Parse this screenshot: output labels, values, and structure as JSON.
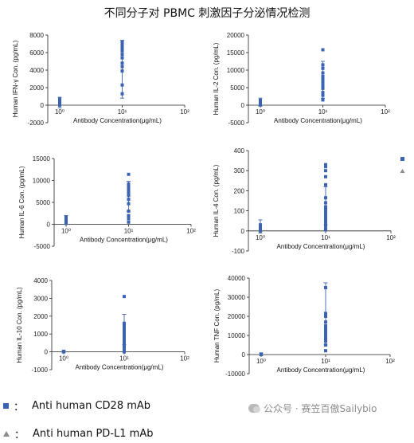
{
  "title": "不同分子对 PBMC 刺激因子分泌情况检测",
  "legend": {
    "items": [
      {
        "label": "Anti human CD28 mAb",
        "marker": "square",
        "color": "#3b62b3"
      },
      {
        "label": "Anti human PD-L1 mAb",
        "marker": "triangle",
        "color": "#8a8a8a"
      }
    ],
    "separator": "："
  },
  "watermark": "公众号 · 赛笠百傲Sailybio",
  "chart_data": [
    {
      "type": "scatter",
      "ylabel": "Human IFN-γ Con. (pg/mL)",
      "xlabel": "Antibody Concentration(μg/mL)",
      "ylim": [
        -2000,
        8000
      ],
      "yticks": [
        -2000,
        0,
        2000,
        4000,
        6000,
        8000
      ],
      "xticks": [
        "10⁰",
        "10¹",
        "10²"
      ],
      "xlog": [
        0,
        2
      ],
      "series": [
        {
          "x": 1,
          "values": [
            0,
            300,
            500,
            700
          ]
        },
        {
          "x": 10,
          "values": [
            1300,
            2300,
            3900,
            4400,
            4800,
            5400,
            5800,
            6200,
            6400,
            6600,
            6900,
            7000,
            7200
          ]
        }
      ],
      "errorbars": [
        {
          "x": 1,
          "low": -300,
          "high": 900
        },
        {
          "x": 10,
          "low": 800,
          "high": 7400
        }
      ]
    },
    {
      "type": "scatter",
      "ylabel": "Human IL-2 Con. (pg/mL)",
      "xlabel": "Antibody Concentration(μg/mL)",
      "ylim": [
        -5000,
        20000
      ],
      "yticks": [
        -5000,
        0,
        5000,
        10000,
        15000,
        20000
      ],
      "xticks": [
        "10⁰",
        "10¹",
        "10²"
      ],
      "xlog": [
        0,
        2
      ],
      "series": [
        {
          "x": 1,
          "values": [
            200,
            600,
            1000,
            1400
          ]
        },
        {
          "x": 10,
          "values": [
            1500,
            2800,
            3600,
            4800,
            5600,
            6500,
            7400,
            8200,
            9200,
            10500,
            11500,
            15800
          ]
        }
      ],
      "errorbars": [
        {
          "x": 1,
          "low": -300,
          "high": 2000
        },
        {
          "x": 10,
          "low": 2000,
          "high": 12500
        }
      ]
    },
    {
      "type": "scatter",
      "ylabel": "Human IL-6 Con. (pg/mL)",
      "xlabel": "Antibody Concentration(μg/mL)",
      "ylim": [
        -5000,
        15000
      ],
      "yticks": [
        -5000,
        0,
        5000,
        10000,
        15000
      ],
      "xticks": [
        "10⁰",
        "10¹",
        "10²"
      ],
      "xlog": [
        0,
        2
      ],
      "series": [
        {
          "x": 1,
          "values": [
            200,
            500,
            900,
            1200,
            1600
          ]
        },
        {
          "x": 10,
          "values": [
            500,
            1300,
            2000,
            3000,
            4700,
            5700,
            6600,
            7200,
            7800,
            8400,
            8800,
            9200,
            11400
          ]
        }
      ],
      "errorbars": [
        {
          "x": 1,
          "low": 0,
          "high": 2000
        },
        {
          "x": 10,
          "low": 3000,
          "high": 9800
        }
      ]
    },
    {
      "type": "scatter",
      "ylabel": "Human IL-4 Con. (pg/mL)",
      "xlabel": "Antibody Concentration(μg/mL)",
      "ylim": [
        -100,
        400
      ],
      "yticks": [
        -100,
        0,
        100,
        200,
        300,
        400
      ],
      "xticks": [
        "10⁰",
        "10¹",
        "10²"
      ],
      "xlog": [
        0,
        2
      ],
      "series": [
        {
          "x": 1,
          "values": [
            0,
            5,
            10,
            15,
            20,
            25,
            30
          ]
        },
        {
          "x": 10,
          "values": [
            5,
            15,
            30,
            45,
            60,
            75,
            90,
            105,
            120,
            140,
            165,
            230,
            270,
            300,
            320,
            330
          ]
        }
      ],
      "errorbars": [
        {
          "x": 1,
          "low": -10,
          "high": 55
        },
        {
          "x": 10,
          "low": 30,
          "high": 220
        }
      ]
    },
    {
      "type": "scatter",
      "ylabel": "Human IL-10 Con. (pg/mL)",
      "xlabel": "Antibody Concentration(μg/mL)",
      "ylim": [
        -1000,
        4000
      ],
      "yticks": [
        -1000,
        0,
        1000,
        2000,
        3000,
        4000
      ],
      "xticks": [
        "10⁰",
        "10¹",
        "10²"
      ],
      "xlog": [
        0,
        2
      ],
      "series": [
        {
          "x": 1,
          "values": [
            0,
            30
          ]
        },
        {
          "x": 10,
          "values": [
            0,
            100,
            200,
            300,
            400,
            500,
            600,
            700,
            800,
            900,
            1000,
            1100,
            1200,
            1300,
            1400,
            1500,
            1600,
            3100
          ]
        }
      ],
      "errorbars": [
        {
          "x": 1,
          "low": -50,
          "high": 80
        },
        {
          "x": 10,
          "low": 400,
          "high": 2100
        }
      ]
    },
    {
      "type": "scatter",
      "ylabel": "Human TNF Con. (pg/mL)",
      "xlabel": "Antibody Concentration(μg/mL)",
      "ylim": [
        -10000,
        40000
      ],
      "yticks": [
        -10000,
        0,
        10000,
        20000,
        30000,
        40000
      ],
      "xticks": [
        "10⁰",
        "10¹",
        "10²"
      ],
      "xlog": [
        0,
        2
      ],
      "series": [
        {
          "x": 1,
          "values": [
            0,
            300
          ]
        },
        {
          "x": 10,
          "values": [
            2000,
            5000,
            7000,
            8500,
            9500,
            10500,
            11500,
            12500,
            13500,
            15000,
            17000,
            20000,
            21500,
            35000
          ]
        }
      ],
      "errorbars": [
        {
          "x": 1,
          "low": -600,
          "high": 800
        },
        {
          "x": 10,
          "low": 5000,
          "high": 37500
        }
      ]
    }
  ]
}
